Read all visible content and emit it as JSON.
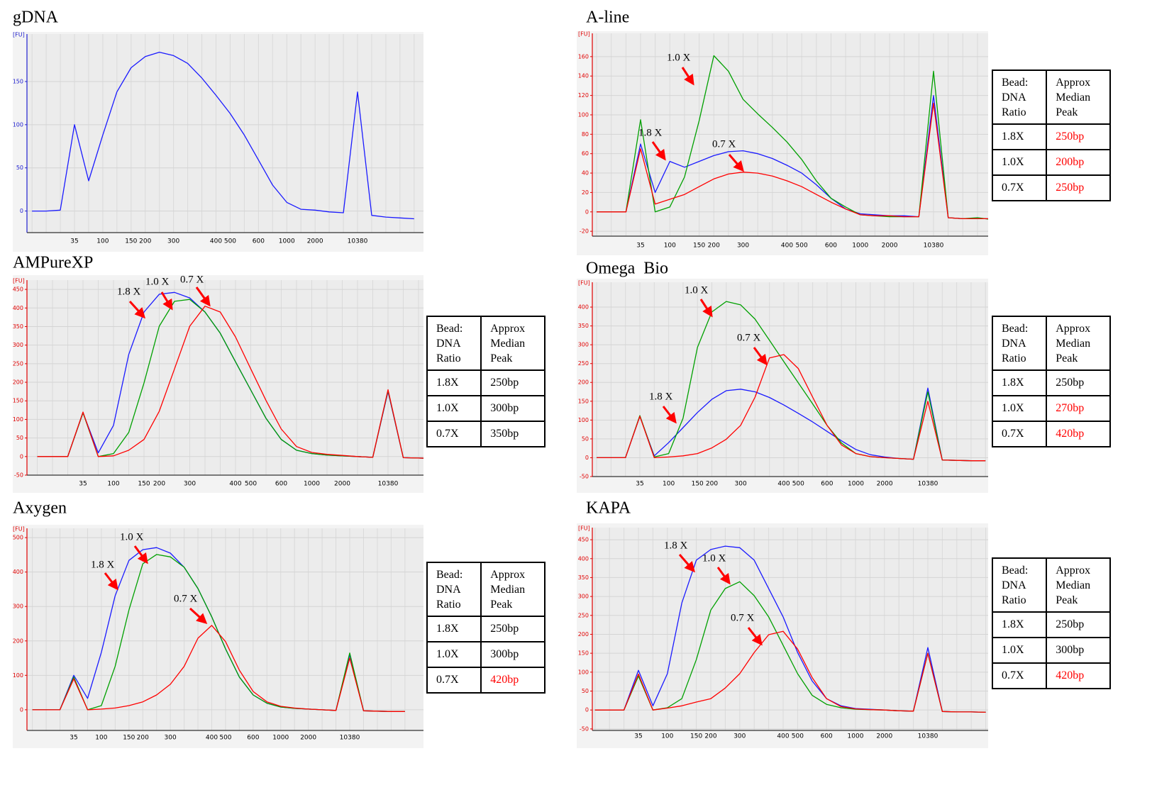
{
  "chart_data": [
    {
      "type": "line",
      "title": "gDNA",
      "y_label": "[FU]",
      "axis_color": "#2020d0",
      "grid": true,
      "categories": [
        null,
        null,
        null,
        "35",
        null,
        "100",
        null,
        "150",
        "200",
        null,
        "300",
        null,
        null,
        "400",
        "500",
        null,
        "600",
        null,
        "1000",
        null,
        "2000",
        null,
        null,
        "10380",
        null,
        null,
        null,
        null
      ],
      "ylim": [
        -25,
        205
      ],
      "yticks": [
        0,
        50,
        100,
        150
      ],
      "series": [
        {
          "color": "#1a1aff",
          "values": [
            0,
            0,
            1,
            100,
            35,
            88,
            138,
            166,
            179,
            184,
            180,
            171,
            154,
            134,
            113,
            88,
            59,
            30,
            10,
            2,
            1,
            -1,
            -2,
            138,
            -5,
            -7,
            -8,
            -9
          ]
        }
      ]
    },
    {
      "type": "line",
      "title": "A-line",
      "y_label": "[FU]",
      "axis_color": "#e00000",
      "grid": true,
      "categories": [
        null,
        null,
        null,
        "35",
        null,
        "100",
        null,
        "150",
        "200",
        null,
        "300",
        null,
        null,
        "400",
        "500",
        null,
        "600",
        null,
        "1000",
        null,
        "2000",
        null,
        null,
        "10380",
        null,
        null,
        null,
        null
      ],
      "ylim": [
        -25,
        184
      ],
      "yticks": [
        -20,
        0,
        20,
        40,
        60,
        80,
        100,
        120,
        140,
        160
      ],
      "series": [
        {
          "color": "#1a1aff",
          "values": [
            0,
            0,
            0,
            70,
            20,
            52,
            46,
            52,
            58,
            62,
            63,
            60,
            55,
            48,
            40,
            28,
            14,
            3,
            -2,
            -3,
            -4,
            -4,
            -5,
            120,
            -6,
            -7,
            -7,
            -7
          ]
        },
        {
          "color": "#00a000",
          "values": [
            0,
            0,
            0,
            95,
            0,
            5,
            36,
            94,
            161,
            145,
            116,
            101,
            87,
            72,
            54,
            32,
            14,
            5,
            -3,
            -4,
            -5,
            -5,
            -5,
            145,
            -6,
            -7,
            -6,
            -8
          ]
        },
        {
          "color": "#ff0000",
          "values": [
            0,
            0,
            0,
            65,
            8,
            13,
            18,
            26,
            34,
            39,
            41,
            40,
            37,
            32,
            26,
            18,
            10,
            3,
            -3,
            -4,
            -4,
            -5,
            -5,
            112,
            -6,
            -7,
            -7,
            -7
          ]
        }
      ],
      "annotations": [
        "1.0 X",
        "1.8 X",
        "0.7 X"
      ],
      "table": {
        "header": [
          "Bead: DNA Ratio",
          "Approx Median Peak"
        ],
        "rows": [
          [
            "1.8X",
            "250bp"
          ],
          [
            "1.0X",
            "200bp"
          ],
          [
            "0.7X",
            "250bp"
          ]
        ],
        "peak_colors": [
          "#ff0000",
          "#ff0000",
          "#ff0000"
        ]
      }
    },
    {
      "type": "line",
      "title": "AMPureXP",
      "y_label": "[FU]",
      "axis_color": "#e00000",
      "grid": true,
      "categories": [
        null,
        null,
        null,
        "35",
        null,
        "100",
        null,
        "150",
        "200",
        null,
        "300",
        null,
        null,
        "400",
        "500",
        null,
        "600",
        null,
        "1000",
        null,
        "2000",
        null,
        null,
        "10380",
        null,
        null,
        null,
        null
      ],
      "ylim": [
        -50,
        475
      ],
      "yticks": [
        -50,
        0,
        50,
        100,
        150,
        200,
        250,
        300,
        350,
        400,
        450
      ],
      "series": [
        {
          "color": "#1a1aff",
          "values": [
            0,
            0,
            0,
            118,
            10,
            84,
            275,
            389,
            437,
            442,
            427,
            389,
            332,
            255,
            179,
            103,
            46,
            17,
            8,
            4,
            2,
            0,
            -2,
            175,
            -3,
            -4,
            -5,
            -5
          ]
        },
        {
          "color": "#00a000",
          "values": [
            0,
            0,
            0,
            118,
            0,
            8,
            65,
            198,
            351,
            418,
            423,
            389,
            332,
            255,
            179,
            103,
            46,
            17,
            8,
            4,
            2,
            0,
            -2,
            178,
            -3,
            -4,
            -5,
            -5
          ]
        },
        {
          "color": "#ff0000",
          "values": [
            0,
            0,
            0,
            120,
            0,
            2,
            17,
            46,
            122,
            236,
            351,
            405,
            389,
            322,
            236,
            151,
            74,
            27,
            11,
            6,
            3,
            0,
            -2,
            180,
            -3,
            -4,
            -5,
            -5
          ]
        }
      ],
      "annotations": [
        "1.8 X",
        "1.0 X",
        "0.7 X"
      ],
      "table": {
        "header": [
          "Bead: DNA Ratio",
          "Approx Median Peak"
        ],
        "rows": [
          [
            "1.8X",
            "250bp"
          ],
          [
            "1.0X",
            "300bp"
          ],
          [
            "0.7X",
            "350bp"
          ]
        ],
        "peak_colors": [
          "#000000",
          "#000000",
          "#000000"
        ]
      }
    },
    {
      "type": "line",
      "title": "Omega  Bio",
      "y_label": "[FU]",
      "axis_color": "#e00000",
      "grid": true,
      "categories": [
        null,
        null,
        null,
        "35",
        null,
        "100",
        null,
        "150",
        "200",
        null,
        "300",
        null,
        null,
        "400",
        "500",
        null,
        "600",
        null,
        "1000",
        null,
        "2000",
        null,
        null,
        "10380",
        null,
        null,
        null,
        null
      ],
      "ylim": [
        -50,
        466
      ],
      "yticks": [
        -50,
        0,
        50,
        100,
        150,
        200,
        250,
        300,
        350,
        400
      ],
      "series": [
        {
          "color": "#1a1aff",
          "values": [
            0,
            0,
            0,
            110,
            5,
            40,
            80,
            120,
            155,
            178,
            182,
            175,
            160,
            140,
            118,
            95,
            70,
            45,
            22,
            8,
            2,
            -2,
            -4,
            185,
            -6,
            -7,
            -8,
            -8
          ]
        },
        {
          "color": "#00a000",
          "values": [
            0,
            0,
            0,
            112,
            2,
            11,
            105,
            293,
            387,
            415,
            406,
            368,
            312,
            255,
            199,
            143,
            86,
            39,
            11,
            3,
            0,
            -2,
            -4,
            175,
            -6,
            -7,
            -8,
            -8
          ]
        },
        {
          "color": "#ff0000",
          "values": [
            0,
            0,
            0,
            110,
            0,
            2,
            5,
            11,
            26,
            49,
            86,
            161,
            265,
            274,
            237,
            161,
            86,
            34,
            11,
            3,
            0,
            -2,
            -4,
            150,
            -6,
            -7,
            -8,
            -8
          ]
        }
      ],
      "annotations": [
        "1.0 X",
        "0.7 X",
        "1.8 X"
      ],
      "table": {
        "header": [
          "Bead: DNA Ratio",
          "Approx Median Peak"
        ],
        "rows": [
          [
            "1.8X",
            "250bp"
          ],
          [
            "1.0X",
            "270bp"
          ],
          [
            "0.7X",
            "420bp"
          ]
        ],
        "peak_colors": [
          "#000000",
          "#ff0000",
          "#ff0000"
        ]
      }
    },
    {
      "type": "line",
      "title": "Axygen",
      "y_label": "[FU]",
      "axis_color": "#e00000",
      "grid": true,
      "categories": [
        null,
        null,
        null,
        "35",
        null,
        "100",
        null,
        "150",
        "200",
        null,
        "300",
        null,
        null,
        "400",
        "500",
        null,
        "600",
        null,
        "1000",
        null,
        "2000",
        null,
        null,
        "10380",
        null,
        null,
        null,
        null
      ],
      "ylim": [
        -60,
        527
      ],
      "yticks": [
        0,
        100,
        200,
        300,
        400,
        500
      ],
      "series": [
        {
          "color": "#1a1aff",
          "values": [
            0,
            0,
            0,
            100,
            33,
            167,
            331,
            434,
            465,
            471,
            455,
            414,
            352,
            270,
            177,
            95,
            43,
            19,
            8,
            4,
            2,
            0,
            -2,
            160,
            -3,
            -4,
            -5,
            -5
          ]
        },
        {
          "color": "#00a000",
          "values": [
            0,
            0,
            0,
            95,
            0,
            12,
            126,
            290,
            424,
            451,
            444,
            414,
            352,
            270,
            177,
            95,
            43,
            19,
            8,
            4,
            2,
            0,
            -2,
            165,
            -3,
            -4,
            -5,
            -5
          ]
        },
        {
          "color": "#ff0000",
          "values": [
            0,
            0,
            0,
            90,
            0,
            2,
            5,
            12,
            23,
            43,
            74,
            126,
            208,
            245,
            198,
            115,
            53,
            23,
            10,
            5,
            2,
            0,
            -2,
            150,
            -3,
            -4,
            -5,
            -5
          ]
        }
      ],
      "annotations": [
        "1.0 X",
        "1.8 X",
        "0.7 X"
      ],
      "table": {
        "header": [
          "Bead: DNA Ratio",
          "Approx Median Peak"
        ],
        "rows": [
          [
            "1.8X",
            "250bp"
          ],
          [
            "1.0X",
            "300bp"
          ],
          [
            "0.7X",
            "420bp"
          ]
        ],
        "peak_colors": [
          "#000000",
          "#000000",
          "#ff0000"
        ]
      }
    },
    {
      "type": "line",
      "title": "KAPA",
      "y_label": "[FU]",
      "axis_color": "#e00000",
      "grid": true,
      "categories": [
        null,
        null,
        null,
        "35",
        null,
        "100",
        null,
        "150",
        "200",
        null,
        "300",
        null,
        null,
        "400",
        "500",
        null,
        "600",
        null,
        "1000",
        null,
        "2000",
        null,
        null,
        "10380",
        null,
        null,
        null,
        null
      ],
      "ylim": [
        -54,
        482
      ],
      "yticks": [
        -50,
        0,
        50,
        100,
        150,
        200,
        250,
        300,
        350,
        400,
        450
      ],
      "series": [
        {
          "color": "#1a1aff",
          "values": [
            0,
            0,
            0,
            105,
            11,
            96,
            283,
            396,
            424,
            433,
            429,
            396,
            321,
            246,
            152,
            77,
            30,
            11,
            4,
            2,
            0,
            -2,
            -3,
            165,
            -4,
            -5,
            -5,
            -6
          ]
        },
        {
          "color": "#00a000",
          "values": [
            0,
            0,
            0,
            90,
            0,
            6,
            30,
            133,
            264,
            321,
            339,
            302,
            246,
            171,
            96,
            39,
            15,
            6,
            2,
            1,
            0,
            -2,
            -3,
            150,
            -4,
            -5,
            -5,
            -6
          ]
        },
        {
          "color": "#ff0000",
          "values": [
            0,
            0,
            0,
            95,
            0,
            5,
            11,
            21,
            30,
            58,
            96,
            152,
            199,
            208,
            161,
            86,
            30,
            9,
            3,
            1,
            0,
            -2,
            -3,
            150,
            -4,
            -5,
            -5,
            -6
          ]
        }
      ],
      "annotations": [
        "1.8 X",
        "1.0 X",
        "0.7 X"
      ],
      "table": {
        "header": [
          "Bead: DNA Ratio",
          "Approx Median Peak"
        ],
        "rows": [
          [
            "1.8X",
            "250bp"
          ],
          [
            "1.0X",
            "300bp"
          ],
          [
            "0.7X",
            "420bp"
          ]
        ],
        "peak_colors": [
          "#000000",
          "#000000",
          "#ff0000"
        ]
      }
    }
  ]
}
